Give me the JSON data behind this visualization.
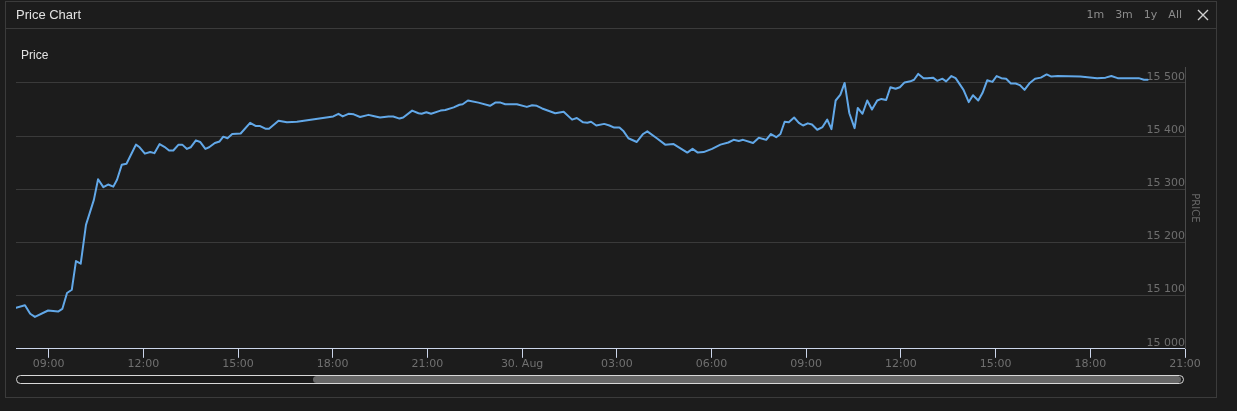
{
  "chart_data": {
    "type": "line",
    "title": "Price Chart",
    "subtitle": "Price",
    "ylabel": "PRICE",
    "annotations": [
      "1m",
      "3m",
      "1y",
      "All"
    ],
    "x": [
      "--08-29T07:58",
      "--08-29T08:15",
      "--08-29T08:25",
      "--08-29T08:34",
      "--08-29T08:59",
      "--08-29T09:18",
      "--08-29T09:26",
      "--08-29T09:35",
      "--08-29T09:44",
      "--08-29T09:52",
      "--08-29T10:01",
      "--08-29T10:11",
      "--08-29T10:26",
      "--08-29T10:34",
      "--08-29T10:44",
      "--08-29T10:53",
      "--08-29T11:03",
      "--08-29T11:10",
      "--08-29T11:19",
      "--08-29T11:28",
      "--08-29T11:41",
      "--08-29T11:46",
      "--08-29T11:53",
      "--08-29T12:03",
      "--08-29T12:13",
      "--08-29T12:21",
      "--08-29T12:31",
      "--08-29T12:40",
      "--08-29T12:49",
      "--08-29T12:57",
      "--08-29T13:07",
      "--08-29T13:14",
      "--08-29T13:23",
      "--08-29T13:30",
      "--08-29T13:40",
      "--08-29T13:48",
      "--08-29T13:58",
      "--08-29T14:05",
      "--08-29T14:16",
      "--08-29T14:25",
      "--08-29T14:32",
      "--08-29T14:40",
      "--08-29T14:49",
      "--08-29T15:05",
      "--08-29T15:23",
      "--08-29T15:34",
      "--08-29T15:42",
      "--08-29T15:52",
      "--08-29T15:59",
      "--08-29T16:17",
      "--08-29T16:33",
      "--08-29T16:52",
      "--08-29T18:01",
      "--08-29T18:11",
      "--08-29T18:19",
      "--08-29T18:30",
      "--08-29T18:40",
      "--08-29T18:52",
      "--08-29T19:08",
      "--08-29T19:17",
      "--08-29T19:30",
      "--08-29T19:46",
      "--08-29T19:55",
      "--08-29T20:07",
      "--08-29T20:14",
      "--08-29T20:31",
      "--08-29T20:43",
      "--08-29T20:49",
      "--08-29T20:58",
      "--08-29T21:07",
      "--08-29T21:25",
      "--08-29T21:34",
      "--08-29T21:50",
      "--08-29T22:01",
      "--08-29T22:07",
      "--08-29T22:17",
      "--08-29T22:37",
      "--08-29T22:59",
      "--08-29T23:09",
      "--08-29T23:19",
      "--08-29T23:28",
      "--08-29T23:50",
      "--08-30T00:09",
      "--08-30T00:19",
      "--08-30T00:28",
      "--08-30T00:38",
      "--08-30T01:03",
      "--08-30T01:19",
      "--08-30T01:35",
      "--08-30T01:44",
      "--08-30T01:56",
      "--08-30T02:04",
      "--08-30T02:11",
      "--08-30T02:21",
      "--08-30T02:36",
      "--08-30T02:46",
      "--08-30T02:55",
      "--08-30T03:05",
      "--08-30T03:13",
      "--08-30T03:22",
      "--08-30T03:38",
      "--08-30T03:50",
      "--08-30T03:58",
      "--08-30T04:16",
      "--08-30T04:32",
      "--08-30T04:48",
      "--08-30T05:14",
      "--08-30T05:24",
      "--08-30T05:34",
      "--08-30T05:45",
      "--08-30T06:01",
      "--08-30T06:17",
      "--08-30T06:32",
      "--08-30T06:42",
      "--08-30T06:52",
      "--08-30T07:00",
      "--08-30T07:19",
      "--08-30T07:30",
      "--08-30T07:44",
      "--08-30T07:53",
      "--08-30T08:03",
      "--08-30T08:11",
      "--08-30T08:19",
      "--08-30T08:27",
      "--08-30T08:37",
      "--08-30T08:46",
      "--08-30T08:54",
      "--08-30T09:03",
      "--08-30T09:11",
      "--08-30T09:21",
      "--08-30T09:31",
      "--08-30T09:40",
      "--08-30T09:48",
      "--08-30T09:56",
      "--08-30T10:05",
      "--08-30T10:13",
      "--08-30T10:22",
      "--08-30T10:32",
      "--08-30T10:38",
      "--08-30T10:47",
      "--08-30T10:56",
      "--08-30T11:05",
      "--08-30T11:15",
      "--08-30T11:23",
      "--08-30T11:32",
      "--08-30T11:40",
      "--08-30T11:50",
      "--08-30T11:58",
      "--08-30T12:07",
      "--08-30T12:18",
      "--08-30T12:25",
      "--08-30T12:33",
      "--08-30T12:43",
      "--08-30T12:50",
      "--08-30T13:01",
      "--08-30T13:09",
      "--08-30T13:19",
      "--08-30T13:26",
      "--08-30T13:36",
      "--08-30T13:44",
      "--08-30T13:59",
      "--08-30T14:09",
      "--08-30T14:17",
      "--08-30T14:27",
      "--08-30T14:35",
      "--08-30T14:44",
      "--08-30T14:54",
      "--08-30T15:02",
      "--08-30T15:11",
      "--08-30T15:20",
      "--08-30T15:29",
      "--08-30T15:38",
      "--08-30T15:46",
      "--08-30T15:55",
      "--08-30T16:05",
      "--08-30T16:15",
      "--08-30T16:26",
      "--08-30T16:37",
      "--08-30T16:46",
      "--08-30T16:58",
      "--08-30T17:41",
      "--08-30T18:13",
      "--08-30T18:29",
      "--08-30T18:40",
      "--08-30T18:52",
      "--08-30T19:10",
      "--08-30T19:32",
      "--08-30T19:42",
      "--08-30T19:49"
    ],
    "values": [
      15077,
      15082,
      15066,
      15060,
      15072,
      15070,
      15075,
      15105,
      15111,
      15165,
      15160,
      15233,
      15280,
      15319,
      15304,
      15309,
      15305,
      15318,
      15346,
      15348,
      15374,
      15384,
      15379,
      15367,
      15370,
      15368,
      15385,
      15380,
      15373,
      15373,
      15384,
      15384,
      15376,
      15379,
      15392,
      15389,
      15376,
      15379,
      15387,
      15390,
      15399,
      15396,
      15404,
      15405,
      15425,
      15419,
      15419,
      15414,
      15414,
      15429,
      15426,
      15427,
      15437,
      15442,
      15437,
      15442,
      15441,
      15436,
      15440,
      15438,
      15435,
      15437,
      15437,
      15433,
      15435,
      15448,
      15443,
      15442,
      15445,
      15442,
      15448,
      15449,
      15454,
      15459,
      15460,
      15467,
      15463,
      15457,
      15463,
      15463,
      15460,
      15460,
      15455,
      15458,
      15457,
      15452,
      15443,
      15446,
      15431,
      15434,
      15426,
      15425,
      15427,
      15420,
      15423,
      15420,
      15416,
      15416,
      15409,
      15396,
      15389,
      15404,
      15409,
      15396,
      15384,
      15385,
      15369,
      15376,
      15369,
      15370,
      15376,
      15384,
      15388,
      15393,
      15391,
      15393,
      15387,
      15397,
      15393,
      15404,
      15398,
      15404,
      15427,
      15426,
      15435,
      15425,
      15420,
      15424,
      15422,
      15412,
      15417,
      15431,
      15413,
      15467,
      15478,
      15500,
      15443,
      15415,
      15453,
      15442,
      15467,
      15450,
      15467,
      15470,
      15468,
      15492,
      15489,
      15492,
      15501,
      15503,
      15506,
      15517,
      15509,
      15509,
      15510,
      15504,
      15508,
      15503,
      15513,
      15509,
      15487,
      15464,
      15477,
      15467,
      15481,
      15505,
      15502,
      15513,
      15509,
      15508,
      15499,
      15499,
      15496,
      15487,
      15500,
      15508,
      15510,
      15516,
      15512,
      15513,
      15512,
      15509,
      15510,
      15513,
      15509,
      15509,
      15509,
      15506,
      15506
    ],
    "color": "#62a8e8",
    "xlim": [
      "--08-29T07:58",
      "--08-30T21:00"
    ],
    "xticks": [
      {
        "value": "--08-29T09:00",
        "label": "09:00"
      },
      {
        "value": "--08-29T12:00",
        "label": "12:00"
      },
      {
        "value": "--08-29T15:00",
        "label": "15:00"
      },
      {
        "value": "--08-29T18:00",
        "label": "18:00"
      },
      {
        "value": "--08-29T21:00",
        "label": "21:00"
      },
      {
        "value": "--08-30",
        "label": "30. Aug"
      },
      {
        "value": "--08-30T03:00",
        "label": "03:00"
      },
      {
        "value": "--08-30T06:00",
        "label": "06:00"
      },
      {
        "value": "--08-30T09:00",
        "label": "09:00"
      },
      {
        "value": "--08-30T12:00",
        "label": "12:00"
      },
      {
        "value": "--08-30T15:00",
        "label": "15:00"
      },
      {
        "value": "--08-30T18:00",
        "label": "18:00"
      },
      {
        "value": "--08-30T21:00",
        "label": "21:00"
      }
    ],
    "ylim": [
      15000,
      15530
    ],
    "yticks": [
      {
        "value": 15000,
        "label": "15 000"
      },
      {
        "value": 15100,
        "label": "15 100"
      },
      {
        "value": 15200,
        "label": "15 200"
      },
      {
        "value": 15300,
        "label": "15 300"
      },
      {
        "value": 15400,
        "label": "15 400"
      },
      {
        "value": 15500,
        "label": "15 500"
      }
    ],
    "grid": "y"
  }
}
